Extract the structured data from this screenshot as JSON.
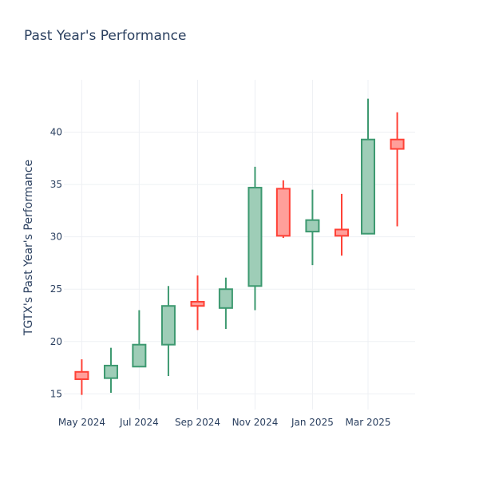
{
  "chart_data": {
    "type": "candlestick",
    "title": "Past Year's Performance",
    "xlabel": "",
    "ylabel": "TGTX's Past Year's Performance",
    "ylim": [
      13.5,
      45.0
    ],
    "yticks": [
      15,
      20,
      25,
      30,
      35,
      40
    ],
    "xlim": [
      "2024-04-12",
      "2025-04-20"
    ],
    "xticks": [
      {
        "date": "2024-05-01",
        "label": "May 2024"
      },
      {
        "date": "2024-07-01",
        "label": "Jul 2024"
      },
      {
        "date": "2024-09-01",
        "label": "Sep 2024"
      },
      {
        "date": "2024-11-01",
        "label": "Nov 2024"
      },
      {
        "date": "2025-01-01",
        "label": "Jan 2025"
      },
      {
        "date": "2025-03-01",
        "label": "Mar 2025"
      }
    ],
    "grid": true,
    "colors": {
      "increasing_line": "#3d9970",
      "increasing_fill": "#9ecdb7",
      "decreasing_line": "#ff4136",
      "decreasing_fill": "#ff9f9a",
      "grid": "#eef0f4",
      "text": "#2a3f5f"
    },
    "candles": [
      {
        "date": "2024-05-01",
        "open": 17.1,
        "high": 18.3,
        "low": 14.9,
        "close": 16.4
      },
      {
        "date": "2024-06-01",
        "open": 16.5,
        "high": 19.4,
        "low": 15.1,
        "close": 17.7
      },
      {
        "date": "2024-07-01",
        "open": 17.6,
        "high": 23.0,
        "low": 17.6,
        "close": 19.7
      },
      {
        "date": "2024-08-01",
        "open": 19.7,
        "high": 25.3,
        "low": 16.7,
        "close": 23.4
      },
      {
        "date": "2024-09-01",
        "open": 23.8,
        "high": 26.3,
        "low": 21.1,
        "close": 23.4
      },
      {
        "date": "2024-10-01",
        "open": 23.2,
        "high": 26.1,
        "low": 21.2,
        "close": 25.0
      },
      {
        "date": "2024-11-01",
        "open": 25.3,
        "high": 36.7,
        "low": 23.0,
        "close": 34.7
      },
      {
        "date": "2024-12-01",
        "open": 34.6,
        "high": 35.4,
        "low": 29.9,
        "close": 30.1
      },
      {
        "date": "2025-01-01",
        "open": 30.5,
        "high": 34.5,
        "low": 27.3,
        "close": 31.6
      },
      {
        "date": "2025-02-01",
        "open": 30.7,
        "high": 34.1,
        "low": 28.2,
        "close": 30.1
      },
      {
        "date": "2025-03-01",
        "open": 30.3,
        "high": 43.2,
        "low": 30.3,
        "close": 39.3
      },
      {
        "date": "2025-04-01",
        "open": 39.3,
        "high": 41.9,
        "low": 31.0,
        "close": 38.4
      }
    ]
  }
}
